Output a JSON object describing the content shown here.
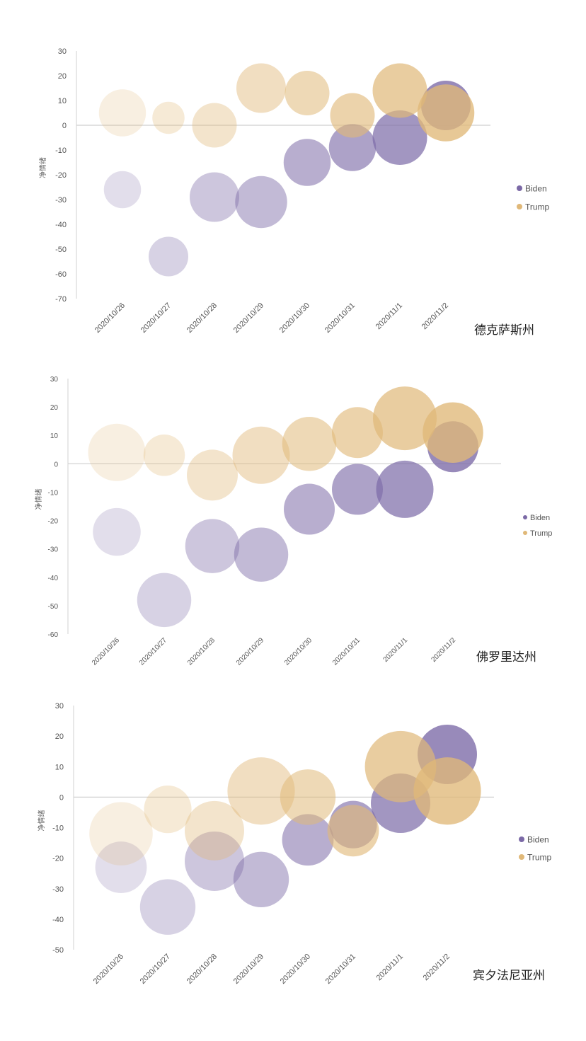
{
  "legend": [
    "Biden",
    "Trump"
  ],
  "colors": {
    "Biden": "#7b69a6",
    "Trump": "#e0b878"
  },
  "chart_data": [
    {
      "type": "scatter",
      "subtype": "bubble",
      "state": "德克萨斯州",
      "ylabel": "净情绪",
      "categories": [
        "2020/10/26",
        "2020/10/27",
        "2020/10/28",
        "2020/10/29",
        "2020/10/30",
        "2020/10/31",
        "2020/11/1",
        "2020/11/2"
      ],
      "ylim": [
        -70,
        30
      ],
      "yticks": [
        30,
        20,
        10,
        0,
        -10,
        -20,
        -30,
        -40,
        -50,
        -60,
        -70
      ],
      "series": [
        {
          "name": "Biden",
          "values": [
            -26,
            -53,
            -29,
            -31,
            -15,
            -9,
            -5,
            8
          ],
          "sizes": [
            1.5,
            1.6,
            2.0,
            2.1,
            1.9,
            1.9,
            2.2,
            2.0
          ]
        },
        {
          "name": "Trump",
          "values": [
            5,
            3,
            0,
            15,
            13,
            4,
            14,
            5
          ],
          "sizes": [
            1.9,
            1.3,
            1.8,
            2.0,
            1.8,
            1.8,
            2.2,
            2.3
          ]
        }
      ],
      "legend_position": "right"
    },
    {
      "type": "scatter",
      "subtype": "bubble",
      "state": "佛罗里达州",
      "ylabel": "净情绪",
      "categories": [
        "2020/10/26",
        "2020/10/27",
        "2020/10/28",
        "2020/10/29",
        "2020/10/30",
        "2020/10/31",
        "2020/11/1",
        "2020/11/2"
      ],
      "ylim": [
        -60,
        30
      ],
      "yticks": [
        30,
        20,
        10,
        0,
        -10,
        -20,
        -30,
        -40,
        -50,
        -60
      ],
      "series": [
        {
          "name": "Biden",
          "values": [
            -24,
            -48,
            -29,
            -32,
            -16,
            -9,
            -9,
            6
          ],
          "sizes": [
            1.5,
            1.7,
            1.7,
            1.7,
            1.6,
            1.6,
            1.8,
            1.6
          ]
        },
        {
          "name": "Trump",
          "values": [
            4,
            3,
            -4,
            3,
            7,
            11,
            16,
            11
          ],
          "sizes": [
            1.8,
            1.3,
            1.6,
            1.8,
            1.7,
            1.6,
            2.0,
            1.9
          ]
        }
      ],
      "legend_position": "right"
    },
    {
      "type": "scatter",
      "subtype": "bubble",
      "state": "宾夕法尼亚州",
      "ylabel": "净情绪",
      "categories": [
        "2020/10/26",
        "2020/10/27",
        "2020/10/28",
        "2020/10/29",
        "2020/10/30",
        "2020/10/31",
        "2020/11/1",
        "2020/11/2"
      ],
      "ylim": [
        -50,
        30
      ],
      "yticks": [
        30,
        20,
        10,
        0,
        -10,
        -20,
        -30,
        -40,
        -50
      ],
      "series": [
        {
          "name": "Biden",
          "values": [
            -23,
            -36,
            -21,
            -27,
            -14,
            -9,
            -2,
            14
          ],
          "sizes": [
            1.3,
            1.4,
            1.5,
            1.4,
            1.3,
            1.2,
            1.5,
            1.5
          ]
        },
        {
          "name": "Trump",
          "values": [
            -12,
            -4,
            -11,
            2,
            0,
            -11,
            10,
            2
          ],
          "sizes": [
            1.6,
            1.2,
            1.5,
            1.7,
            1.4,
            1.3,
            1.8,
            1.7
          ]
        }
      ],
      "legend_position": "right"
    }
  ]
}
